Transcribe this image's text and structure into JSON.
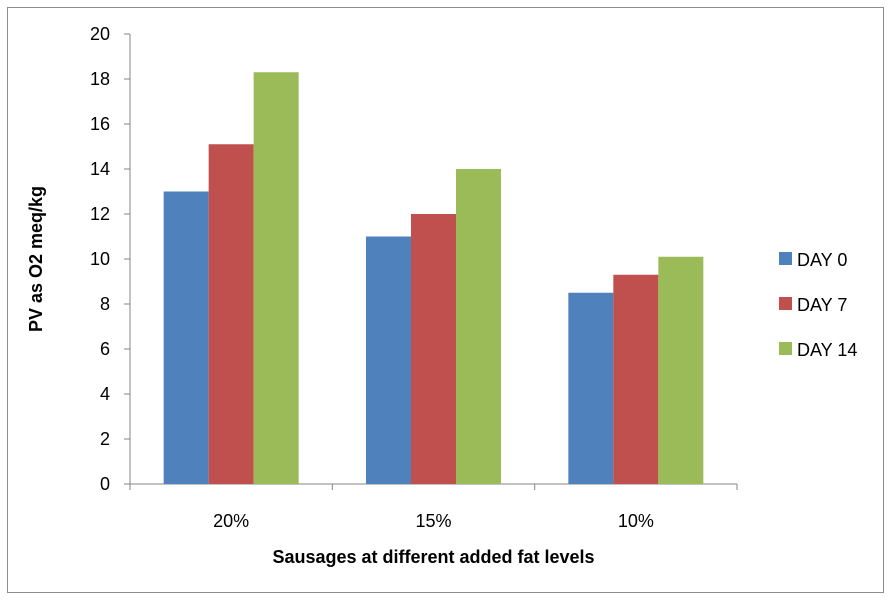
{
  "chart_data": {
    "type": "bar",
    "title": "",
    "xlabel": "Sausages at different added fat levels",
    "ylabel": "PV as O2 meq/kg",
    "categories": [
      "20%",
      "15%",
      "10%"
    ],
    "ylim": [
      0,
      20
    ],
    "yticks": [
      0,
      2,
      4,
      6,
      8,
      10,
      12,
      14,
      16,
      18,
      20
    ],
    "grid": false,
    "legend_position": "right",
    "series": [
      {
        "name": "DAY 0",
        "color": "#4f81bd",
        "values": [
          13.0,
          11.0,
          8.5
        ]
      },
      {
        "name": "DAY 7",
        "color": "#c0504d",
        "values": [
          15.1,
          12.0,
          9.3
        ]
      },
      {
        "name": "DAY 14",
        "color": "#9bbb59",
        "values": [
          18.3,
          14.0,
          10.1
        ]
      }
    ]
  }
}
